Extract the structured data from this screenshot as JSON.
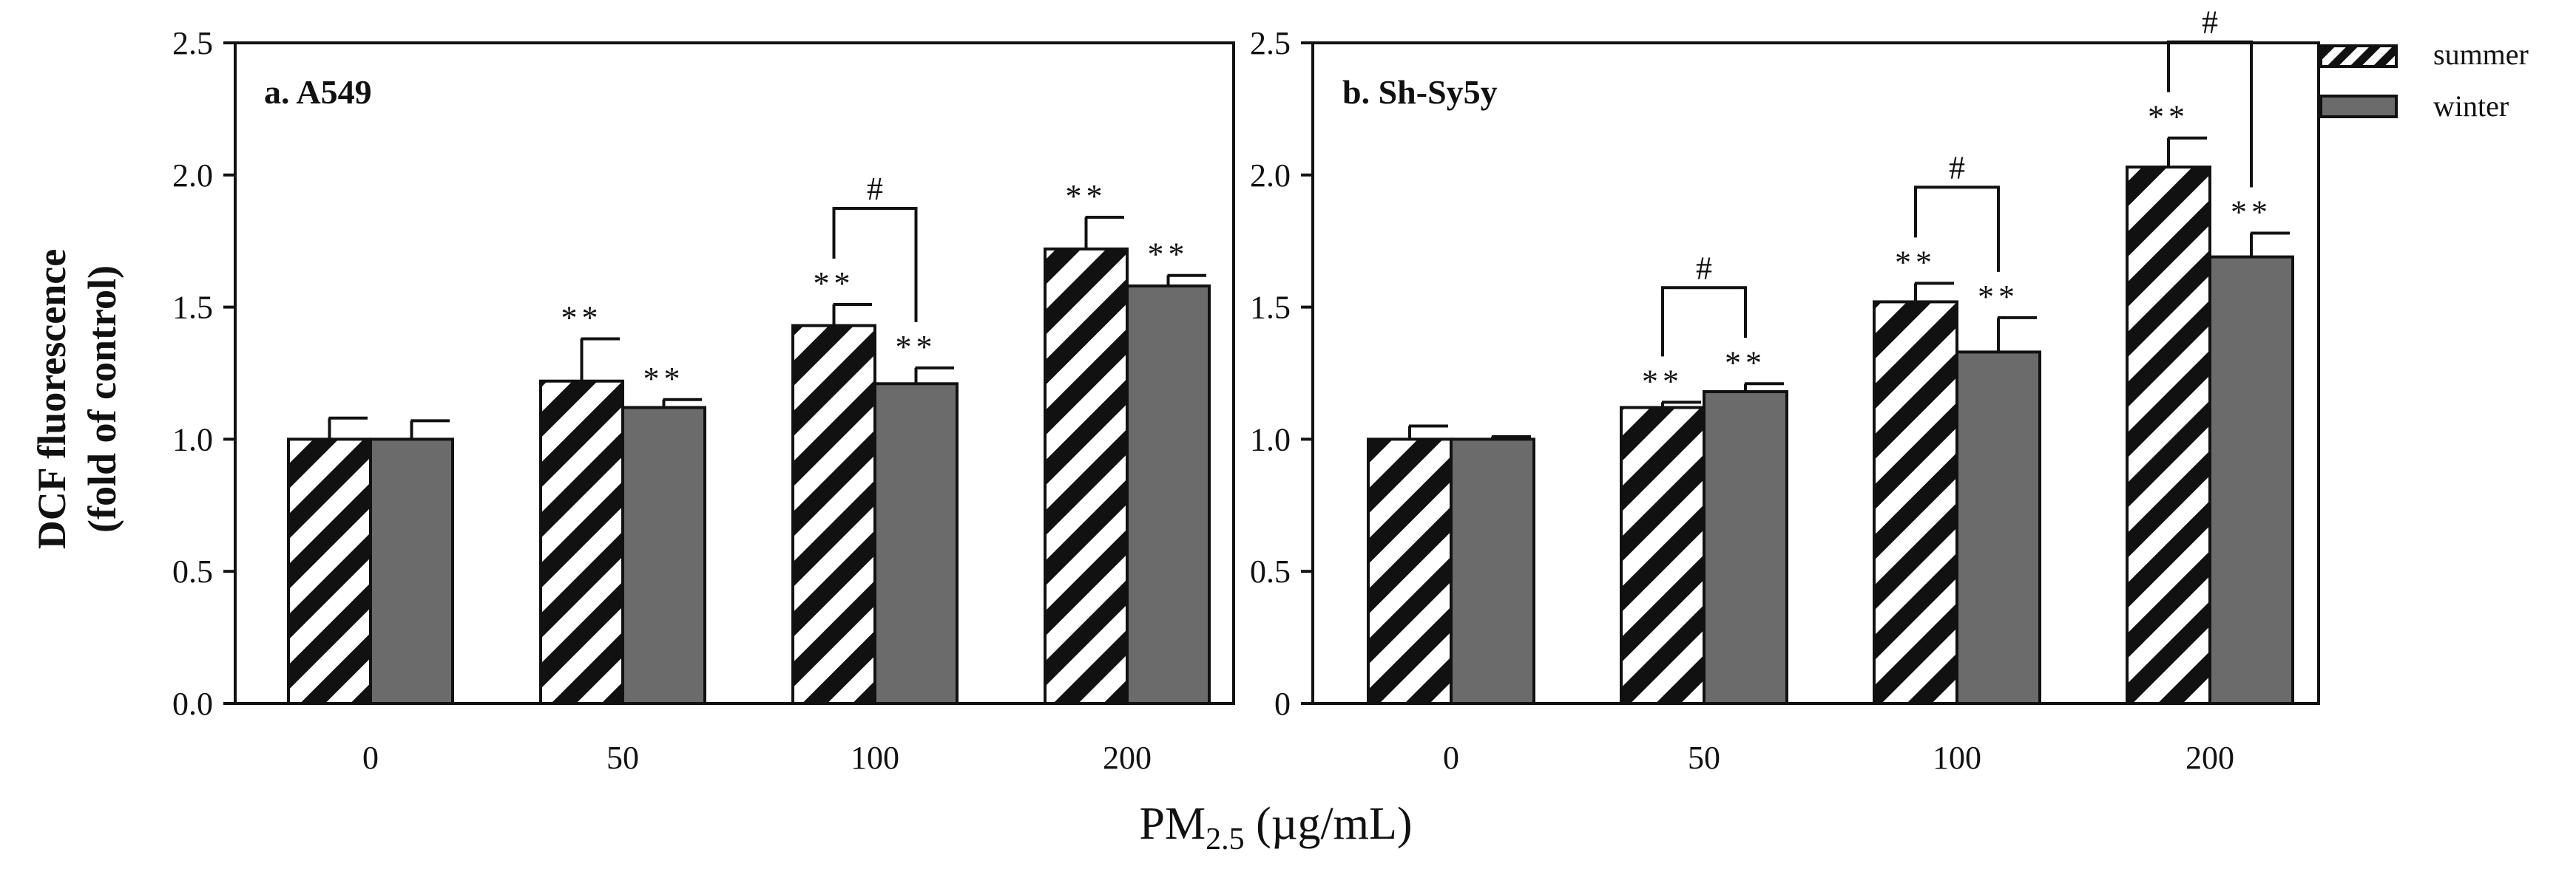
{
  "colors": {
    "summer_stripe": "#111111",
    "summer_bg": "#ffffff",
    "winter": "#6b6b6b",
    "axis": "#111111"
  },
  "chart_data": [
    {
      "type": "bar",
      "title": "a. A549",
      "categories": [
        "0",
        "50",
        "100",
        "200"
      ],
      "xlabel_parts": {
        "base": "PM",
        "sub": "2.5",
        "rest": " (µg/mL)"
      },
      "ylabel": [
        "DCF fluorescence",
        "(fold of control)"
      ],
      "ylim": [
        0,
        2.5
      ],
      "yticks": [
        0,
        0.5,
        1,
        1.5,
        2,
        2.5
      ],
      "ytick_labels": [
        "0.0",
        "0.5",
        "1.0",
        "1.5",
        "2.0",
        "2.5"
      ],
      "legend": [
        "summer",
        "winter"
      ],
      "series": [
        {
          "name": "summer",
          "values": [
            1.0,
            1.22,
            1.43,
            1.72
          ],
          "errors": [
            0.08,
            0.16,
            0.08,
            0.12
          ],
          "sig": [
            "",
            "**",
            "**",
            "**"
          ]
        },
        {
          "name": "winter",
          "values": [
            1.0,
            1.12,
            1.21,
            1.58
          ],
          "errors": [
            0.07,
            0.03,
            0.06,
            0.04
          ],
          "sig": [
            "",
            "**",
            "**",
            "**"
          ]
        }
      ],
      "brackets": [
        {
          "category": 2,
          "label": "#"
        }
      ]
    },
    {
      "type": "bar",
      "title": "b. Sh-Sy5y",
      "categories": [
        "0",
        "50",
        "100",
        "200"
      ],
      "ylim": [
        0,
        2.5
      ],
      "yticks": [
        0,
        0.5,
        1,
        1.5,
        2,
        2.5
      ],
      "ytick_labels": [
        "0",
        "0.5",
        "1.0",
        "1.5",
        "2.0",
        "2.5"
      ],
      "series": [
        {
          "name": "summer",
          "values": [
            1.0,
            1.12,
            1.52,
            2.03
          ],
          "errors": [
            0.05,
            0.02,
            0.07,
            0.11
          ],
          "sig": [
            "",
            "**",
            "**",
            "**"
          ]
        },
        {
          "name": "winter",
          "values": [
            1.0,
            1.18,
            1.33,
            1.69
          ],
          "errors": [
            0.01,
            0.03,
            0.13,
            0.09
          ],
          "sig": [
            "",
            "**",
            "**",
            "**"
          ]
        }
      ],
      "brackets": [
        {
          "category": 1,
          "label": "#"
        },
        {
          "category": 2,
          "label": "#"
        },
        {
          "category": 3,
          "label": "#"
        }
      ]
    }
  ]
}
